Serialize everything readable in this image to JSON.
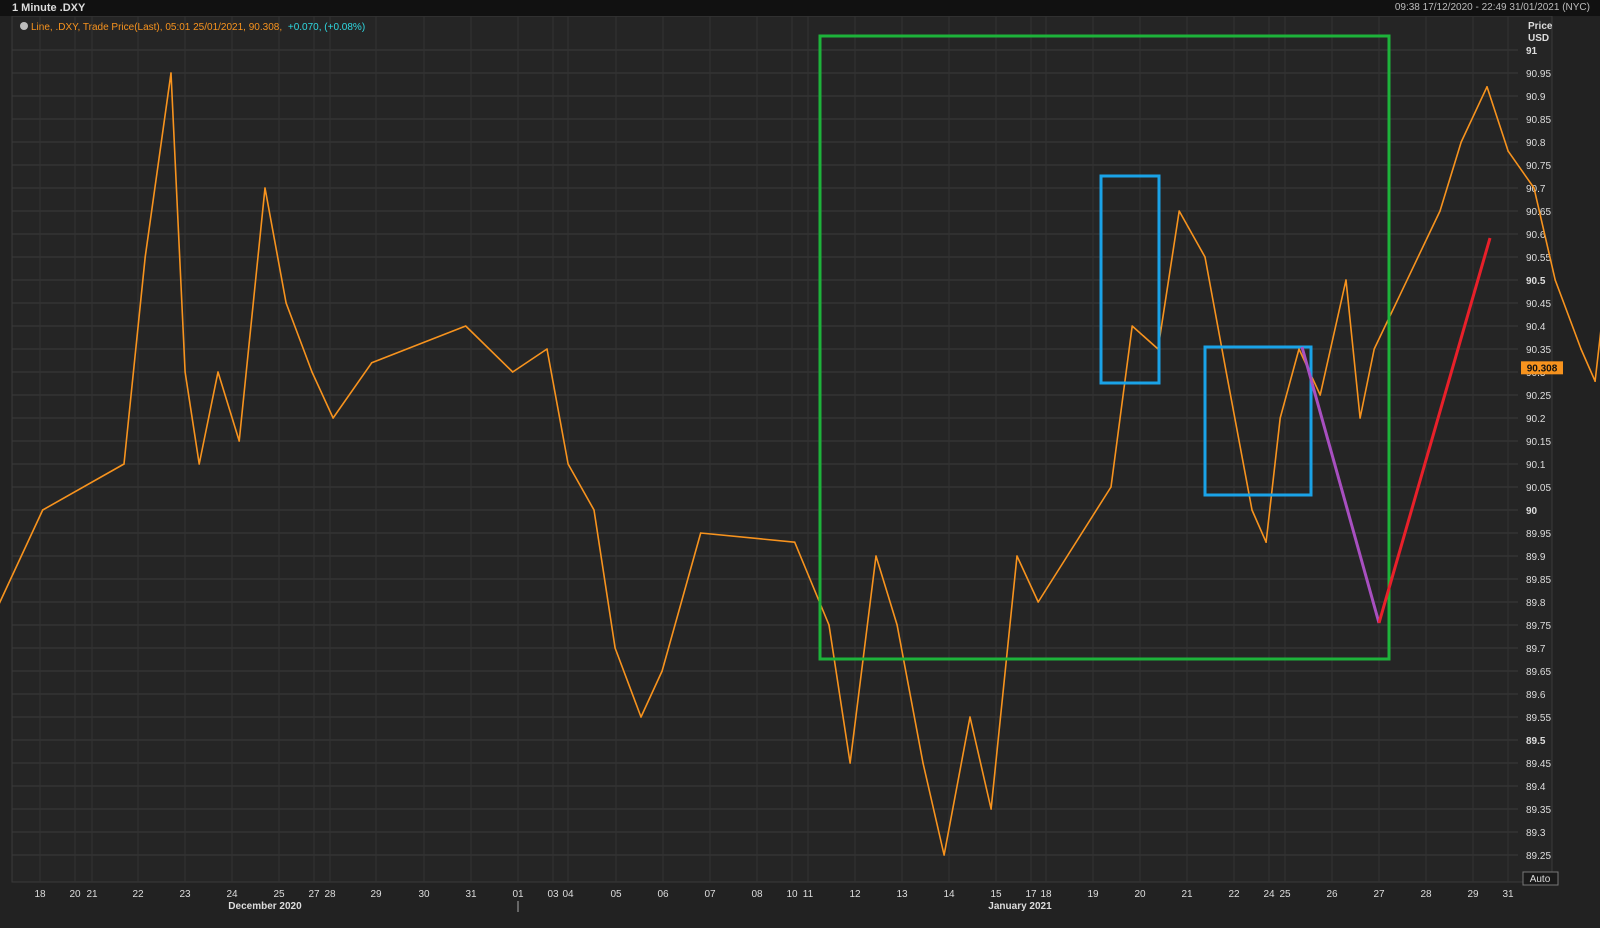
{
  "window": {
    "title": "1 Minute .DXY",
    "date_range": "09:38 17/12/2020 - 22:49 31/01/2021 (NYC)"
  },
  "legend": {
    "prefix": "Line, .DXY, Trade Price(Last), 05:01 25/01/2021, 90.308,",
    "change": "+0.070, (+0.08%)"
  },
  "axis": {
    "unit_line1": "Price",
    "unit_line2": "USD",
    "last_price_label": "90.308",
    "auto_button": "Auto"
  },
  "colors": {
    "background": "#222222",
    "price_line": "#f7931e",
    "green_box": "#1db33a",
    "blue_box": "#1aa3e8",
    "purple_line": "#a84fc0",
    "red_line": "#e8202a",
    "legend_change": "#2fd8e0"
  },
  "chart_data": {
    "type": "line",
    "title": "1 Minute .DXY",
    "ylabel": "Price USD",
    "ylim": [
      89.2,
      91.05
    ],
    "y_ticks": [
      "91",
      "90.95",
      "90.9",
      "90.85",
      "90.8",
      "90.75",
      "90.7",
      "90.65",
      "90.6",
      "90.55",
      "90.5",
      "90.45",
      "90.4",
      "90.35",
      "90.3",
      "90.25",
      "90.2",
      "90.15",
      "90.1",
      "90.05",
      "90",
      "89.95",
      "89.9",
      "89.85",
      "89.8",
      "89.75",
      "89.7",
      "89.65",
      "89.6",
      "89.55",
      "89.5",
      "89.45",
      "89.4",
      "89.35",
      "89.3",
      "89.25"
    ],
    "x_ticks": [
      "18",
      "20",
      "21",
      "22",
      "23",
      "24",
      "25",
      "27",
      "28",
      "29",
      "30",
      "31",
      "01",
      "03",
      "04",
      "05",
      "06",
      "07",
      "08",
      "10",
      "11",
      "12",
      "13",
      "14",
      "15",
      "17",
      "18",
      "19",
      "20",
      "21",
      "22",
      "24",
      "25",
      "26",
      "27",
      "28",
      "29",
      "31"
    ],
    "x_month_labels": [
      "December 2020",
      "January 2021"
    ],
    "series": [
      {
        "points": [
          [
            "17 Dec",
            89.78
          ],
          [
            "18 Dec",
            90.0
          ],
          [
            "20 Dec",
            90.1
          ],
          [
            "20 Dec",
            90.55
          ],
          [
            "21 Dec",
            90.95
          ],
          [
            "21 Dec",
            90.3
          ],
          [
            "21 Dec",
            90.1
          ],
          [
            "22 Dec",
            90.3
          ],
          [
            "22 Dec",
            90.15
          ],
          [
            "23 Dec",
            90.7
          ],
          [
            "23 Dec",
            90.45
          ],
          [
            "24 Dec",
            90.3
          ],
          [
            "24 Dec",
            90.2
          ],
          [
            "25 Dec",
            90.32
          ],
          [
            "27 Dec",
            90.4
          ],
          [
            "28 Dec",
            90.3
          ],
          [
            "29 Dec",
            90.35
          ],
          [
            "29 Dec",
            90.1
          ],
          [
            "30 Dec",
            90.0
          ],
          [
            "30 Dec",
            89.7
          ],
          [
            "31 Dec",
            89.55
          ],
          [
            "31 Dec",
            89.65
          ],
          [
            "01 Jan",
            89.95
          ],
          [
            "03 Jan",
            89.93
          ],
          [
            "04 Jan",
            89.75
          ],
          [
            "04 Jan",
            89.45
          ],
          [
            "05 Jan",
            89.9
          ],
          [
            "05 Jan",
            89.75
          ],
          [
            "06 Jan",
            89.45
          ],
          [
            "06 Jan",
            89.25
          ],
          [
            "07 Jan",
            89.55
          ],
          [
            "07 Jan",
            89.35
          ],
          [
            "08 Jan",
            89.9
          ],
          [
            "08 Jan",
            89.8
          ],
          [
            "10 Jan",
            90.05
          ],
          [
            "10 Jan",
            90.4
          ],
          [
            "11 Jan",
            90.35
          ],
          [
            "11 Jan",
            90.65
          ],
          [
            "12 Jan",
            90.55
          ],
          [
            "12 Jan",
            90.3
          ],
          [
            "13 Jan",
            90.0
          ],
          [
            "13 Jan",
            89.93
          ],
          [
            "13 Jan",
            90.2
          ],
          [
            "14 Jan",
            90.35
          ],
          [
            "14 Jan",
            90.25
          ],
          [
            "15 Jan",
            90.5
          ],
          [
            "15 Jan",
            90.2
          ],
          [
            "15 Jan",
            90.35
          ],
          [
            "17 Jan",
            90.65
          ],
          [
            "17 Jan",
            90.8
          ],
          [
            "18 Jan",
            90.92
          ],
          [
            "18 Jan",
            90.78
          ],
          [
            "19 Jan",
            90.7
          ],
          [
            "19 Jan",
            90.5
          ],
          [
            "20 Jan",
            90.35
          ],
          [
            "20 Jan",
            90.28
          ],
          [
            "20 Jan",
            90.55
          ],
          [
            "21 Jan",
            90.45
          ],
          [
            "21 Jan",
            90.3
          ],
          [
            "21 Jan",
            90.1
          ],
          [
            "22 Jan",
            90.1
          ],
          [
            "22 Jan",
            90.25
          ],
          [
            "24 Jan",
            90.2
          ],
          [
            "24 Jan",
            90.15
          ],
          [
            "25 Jan",
            90.1
          ],
          [
            "25 Jan",
            90.33
          ]
        ]
      }
    ]
  }
}
